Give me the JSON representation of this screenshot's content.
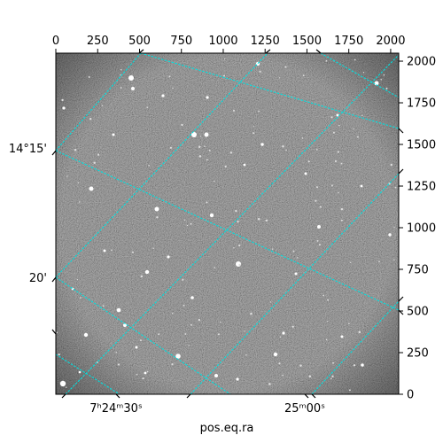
{
  "chart_data": {
    "type": "image",
    "description_kind": "astronomical image with WCS coordinate grid overlay",
    "pixel_axes": {
      "x_range": [
        0,
        2048
      ],
      "y_range": [
        0,
        2048
      ],
      "top_ticks": [
        0,
        250,
        500,
        750,
        1000,
        1250,
        1500,
        1750,
        2000
      ],
      "right_ticks": [
        0,
        250,
        500,
        750,
        1000,
        1250,
        1500,
        1750,
        2000
      ]
    },
    "world_axes": {
      "bottom_label": "pos.eq.ra",
      "bottom_tick_labels": [
        "7ʰ24ᵐ30ˢ",
        "25ᵐ00ˢ"
      ],
      "left_tick_labels": [
        "14°15'",
        "20'"
      ]
    },
    "grid": true,
    "grid_color": "#00e0e0",
    "colormap": "gray"
  }
}
